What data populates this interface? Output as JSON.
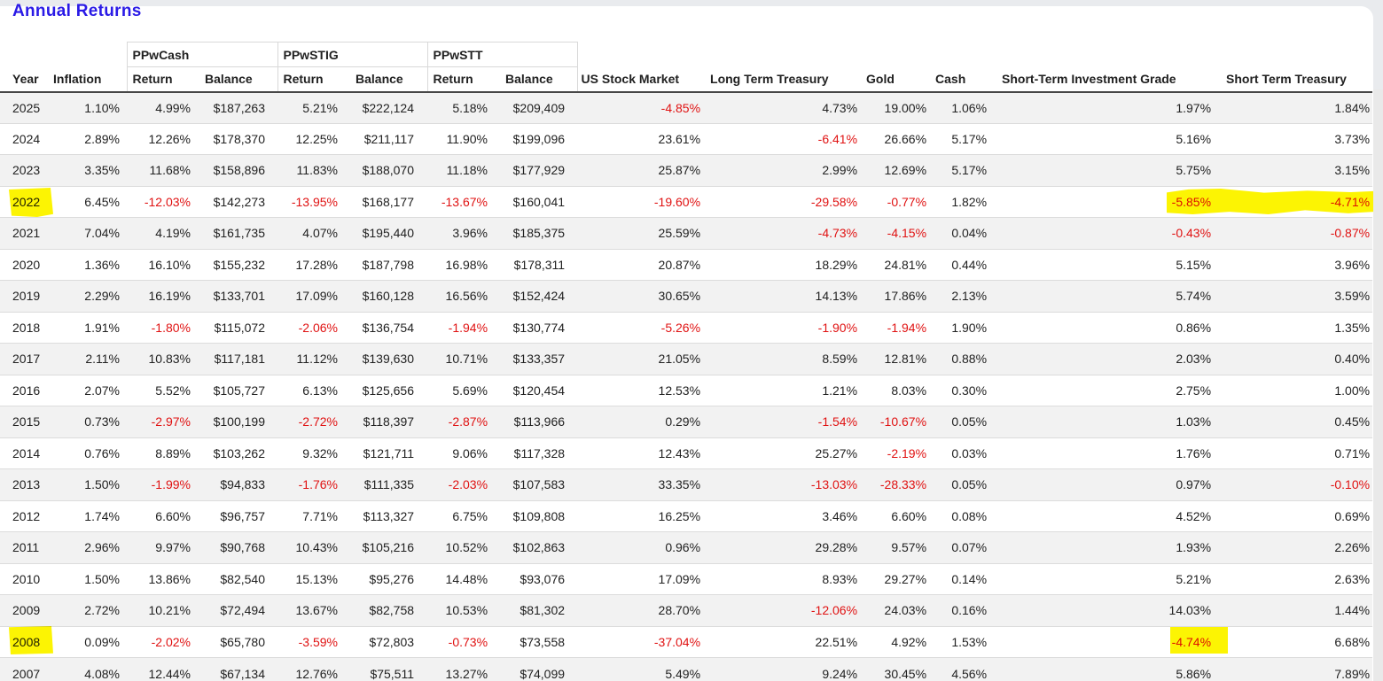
{
  "page": {
    "title": "Annual Returns",
    "title_color": "#2a1ae6"
  },
  "colors": {
    "negative": "#e01212",
    "text": "#212121",
    "highlight": "#fcf403",
    "stripe": "#f2f2f2",
    "header_rule": "#474747"
  },
  "table": {
    "column_groups": [
      {
        "label": "PPwCash"
      },
      {
        "label": "PPwSTIG"
      },
      {
        "label": "PPwSTT"
      }
    ],
    "headers": {
      "year": "Year",
      "inflation": "Inflation",
      "return": "Return",
      "balance": "Balance",
      "us_stock_market": "US Stock Market",
      "long_term_treasury": "Long Term Treasury",
      "gold": "Gold",
      "cash": "Cash",
      "short_term_investment_grade": "Short-Term Investment Grade",
      "short_term_treasury": "Short Term Treasury"
    },
    "rows": [
      {
        "year": "2025",
        "inflation": "1.10%",
        "ppwcash_return": "4.99%",
        "ppwcash_balance": "$187,263",
        "ppwstig_return": "5.21%",
        "ppwstig_balance": "$222,124",
        "ppwstt_return": "5.18%",
        "ppwstt_balance": "$209,409",
        "us_stock_market": "-4.85%",
        "long_term_treasury": "4.73%",
        "gold": "19.00%",
        "cash": "1.06%",
        "short_term_investment_grade": "1.97%",
        "short_term_treasury": "1.84%"
      },
      {
        "year": "2024",
        "inflation": "2.89%",
        "ppwcash_return": "12.26%",
        "ppwcash_balance": "$178,370",
        "ppwstig_return": "12.25%",
        "ppwstig_balance": "$211,117",
        "ppwstt_return": "11.90%",
        "ppwstt_balance": "$199,096",
        "us_stock_market": "23.61%",
        "long_term_treasury": "-6.41%",
        "gold": "26.66%",
        "cash": "5.17%",
        "short_term_investment_grade": "5.16%",
        "short_term_treasury": "3.73%"
      },
      {
        "year": "2023",
        "inflation": "3.35%",
        "ppwcash_return": "11.68%",
        "ppwcash_balance": "$158,896",
        "ppwstig_return": "11.83%",
        "ppwstig_balance": "$188,070",
        "ppwstt_return": "11.18%",
        "ppwstt_balance": "$177,929",
        "us_stock_market": "25.87%",
        "long_term_treasury": "2.99%",
        "gold": "12.69%",
        "cash": "5.17%",
        "short_term_investment_grade": "5.75%",
        "short_term_treasury": "3.15%"
      },
      {
        "year": "2022",
        "inflation": "6.45%",
        "ppwcash_return": "-12.03%",
        "ppwcash_balance": "$142,273",
        "ppwstig_return": "-13.95%",
        "ppwstig_balance": "$168,177",
        "ppwstt_return": "-13.67%",
        "ppwstt_balance": "$160,041",
        "us_stock_market": "-19.60%",
        "long_term_treasury": "-29.58%",
        "gold": "-0.77%",
        "cash": "1.82%",
        "short_term_investment_grade": "-5.85%",
        "short_term_treasury": "-4.71%"
      },
      {
        "year": "2021",
        "inflation": "7.04%",
        "ppwcash_return": "4.19%",
        "ppwcash_balance": "$161,735",
        "ppwstig_return": "4.07%",
        "ppwstig_balance": "$195,440",
        "ppwstt_return": "3.96%",
        "ppwstt_balance": "$185,375",
        "us_stock_market": "25.59%",
        "long_term_treasury": "-4.73%",
        "gold": "-4.15%",
        "cash": "0.04%",
        "short_term_investment_grade": "-0.43%",
        "short_term_treasury": "-0.87%"
      },
      {
        "year": "2020",
        "inflation": "1.36%",
        "ppwcash_return": "16.10%",
        "ppwcash_balance": "$155,232",
        "ppwstig_return": "17.28%",
        "ppwstig_balance": "$187,798",
        "ppwstt_return": "16.98%",
        "ppwstt_balance": "$178,311",
        "us_stock_market": "20.87%",
        "long_term_treasury": "18.29%",
        "gold": "24.81%",
        "cash": "0.44%",
        "short_term_investment_grade": "5.15%",
        "short_term_treasury": "3.96%"
      },
      {
        "year": "2019",
        "inflation": "2.29%",
        "ppwcash_return": "16.19%",
        "ppwcash_balance": "$133,701",
        "ppwstig_return": "17.09%",
        "ppwstig_balance": "$160,128",
        "ppwstt_return": "16.56%",
        "ppwstt_balance": "$152,424",
        "us_stock_market": "30.65%",
        "long_term_treasury": "14.13%",
        "gold": "17.86%",
        "cash": "2.13%",
        "short_term_investment_grade": "5.74%",
        "short_term_treasury": "3.59%"
      },
      {
        "year": "2018",
        "inflation": "1.91%",
        "ppwcash_return": "-1.80%",
        "ppwcash_balance": "$115,072",
        "ppwstig_return": "-2.06%",
        "ppwstig_balance": "$136,754",
        "ppwstt_return": "-1.94%",
        "ppwstt_balance": "$130,774",
        "us_stock_market": "-5.26%",
        "long_term_treasury": "-1.90%",
        "gold": "-1.94%",
        "cash": "1.90%",
        "short_term_investment_grade": "0.86%",
        "short_term_treasury": "1.35%"
      },
      {
        "year": "2017",
        "inflation": "2.11%",
        "ppwcash_return": "10.83%",
        "ppwcash_balance": "$117,181",
        "ppwstig_return": "11.12%",
        "ppwstig_balance": "$139,630",
        "ppwstt_return": "10.71%",
        "ppwstt_balance": "$133,357",
        "us_stock_market": "21.05%",
        "long_term_treasury": "8.59%",
        "gold": "12.81%",
        "cash": "0.88%",
        "short_term_investment_grade": "2.03%",
        "short_term_treasury": "0.40%"
      },
      {
        "year": "2016",
        "inflation": "2.07%",
        "ppwcash_return": "5.52%",
        "ppwcash_balance": "$105,727",
        "ppwstig_return": "6.13%",
        "ppwstig_balance": "$125,656",
        "ppwstt_return": "5.69%",
        "ppwstt_balance": "$120,454",
        "us_stock_market": "12.53%",
        "long_term_treasury": "1.21%",
        "gold": "8.03%",
        "cash": "0.30%",
        "short_term_investment_grade": "2.75%",
        "short_term_treasury": "1.00%"
      },
      {
        "year": "2015",
        "inflation": "0.73%",
        "ppwcash_return": "-2.97%",
        "ppwcash_balance": "$100,199",
        "ppwstig_return": "-2.72%",
        "ppwstig_balance": "$118,397",
        "ppwstt_return": "-2.87%",
        "ppwstt_balance": "$113,966",
        "us_stock_market": "0.29%",
        "long_term_treasury": "-1.54%",
        "gold": "-10.67%",
        "cash": "0.05%",
        "short_term_investment_grade": "1.03%",
        "short_term_treasury": "0.45%"
      },
      {
        "year": "2014",
        "inflation": "0.76%",
        "ppwcash_return": "8.89%",
        "ppwcash_balance": "$103,262",
        "ppwstig_return": "9.32%",
        "ppwstig_balance": "$121,711",
        "ppwstt_return": "9.06%",
        "ppwstt_balance": "$117,328",
        "us_stock_market": "12.43%",
        "long_term_treasury": "25.27%",
        "gold": "-2.19%",
        "cash": "0.03%",
        "short_term_investment_grade": "1.76%",
        "short_term_treasury": "0.71%"
      },
      {
        "year": "2013",
        "inflation": "1.50%",
        "ppwcash_return": "-1.99%",
        "ppwcash_balance": "$94,833",
        "ppwstig_return": "-1.76%",
        "ppwstig_balance": "$111,335",
        "ppwstt_return": "-2.03%",
        "ppwstt_balance": "$107,583",
        "us_stock_market": "33.35%",
        "long_term_treasury": "-13.03%",
        "gold": "-28.33%",
        "cash": "0.05%",
        "short_term_investment_grade": "0.97%",
        "short_term_treasury": "-0.10%"
      },
      {
        "year": "2012",
        "inflation": "1.74%",
        "ppwcash_return": "6.60%",
        "ppwcash_balance": "$96,757",
        "ppwstig_return": "7.71%",
        "ppwstig_balance": "$113,327",
        "ppwstt_return": "6.75%",
        "ppwstt_balance": "$109,808",
        "us_stock_market": "16.25%",
        "long_term_treasury": "3.46%",
        "gold": "6.60%",
        "cash": "0.08%",
        "short_term_investment_grade": "4.52%",
        "short_term_treasury": "0.69%"
      },
      {
        "year": "2011",
        "inflation": "2.96%",
        "ppwcash_return": "9.97%",
        "ppwcash_balance": "$90,768",
        "ppwstig_return": "10.43%",
        "ppwstig_balance": "$105,216",
        "ppwstt_return": "10.52%",
        "ppwstt_balance": "$102,863",
        "us_stock_market": "0.96%",
        "long_term_treasury": "29.28%",
        "gold": "9.57%",
        "cash": "0.07%",
        "short_term_investment_grade": "1.93%",
        "short_term_treasury": "2.26%"
      },
      {
        "year": "2010",
        "inflation": "1.50%",
        "ppwcash_return": "13.86%",
        "ppwcash_balance": "$82,540",
        "ppwstig_return": "15.13%",
        "ppwstig_balance": "$95,276",
        "ppwstt_return": "14.48%",
        "ppwstt_balance": "$93,076",
        "us_stock_market": "17.09%",
        "long_term_treasury": "8.93%",
        "gold": "29.27%",
        "cash": "0.14%",
        "short_term_investment_grade": "5.21%",
        "short_term_treasury": "2.63%"
      },
      {
        "year": "2009",
        "inflation": "2.72%",
        "ppwcash_return": "10.21%",
        "ppwcash_balance": "$72,494",
        "ppwstig_return": "13.67%",
        "ppwstig_balance": "$82,758",
        "ppwstt_return": "10.53%",
        "ppwstt_balance": "$81,302",
        "us_stock_market": "28.70%",
        "long_term_treasury": "-12.06%",
        "gold": "24.03%",
        "cash": "0.16%",
        "short_term_investment_grade": "14.03%",
        "short_term_treasury": "1.44%"
      },
      {
        "year": "2008",
        "inflation": "0.09%",
        "ppwcash_return": "-2.02%",
        "ppwcash_balance": "$65,780",
        "ppwstig_return": "-3.59%",
        "ppwstig_balance": "$72,803",
        "ppwstt_return": "-0.73%",
        "ppwstt_balance": "$73,558",
        "us_stock_market": "-37.04%",
        "long_term_treasury": "22.51%",
        "gold": "4.92%",
        "cash": "1.53%",
        "short_term_investment_grade": "-4.74%",
        "short_term_treasury": "6.68%"
      },
      {
        "year": "2007",
        "inflation": "4.08%",
        "ppwcash_return": "12.44%",
        "ppwcash_balance": "$67,134",
        "ppwstig_return": "12.76%",
        "ppwstig_balance": "$75,511",
        "ppwstt_return": "13.27%",
        "ppwstt_balance": "$74,099",
        "us_stock_market": "5.49%",
        "long_term_treasury": "9.24%",
        "gold": "30.45%",
        "cash": "4.56%",
        "short_term_investment_grade": "5.86%",
        "short_term_treasury": "7.89%"
      }
    ],
    "highlights": [
      {
        "type": "year",
        "row": "2022"
      },
      {
        "type": "marker-band",
        "row": "2022",
        "columns": [
          "short_term_investment_grade",
          "short_term_treasury"
        ]
      },
      {
        "type": "year",
        "row": "2008"
      },
      {
        "type": "cell",
        "row": "2008",
        "column": "short_term_investment_grade"
      }
    ]
  }
}
